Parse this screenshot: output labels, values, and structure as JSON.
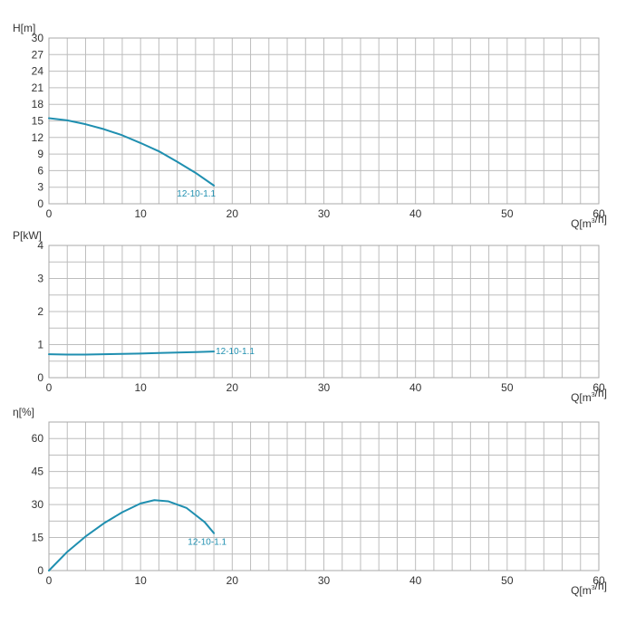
{
  "colors": {
    "curve": "#1f8fb0",
    "grid": "#bdbdbd",
    "axis_text": "#333333"
  },
  "chart_data": [
    {
      "type": "line",
      "ylabel": "H[m]",
      "xlabel": "Q[m³/h]",
      "xlim": [
        0,
        60
      ],
      "ylim": [
        0,
        30
      ],
      "xticks": [
        0,
        10,
        20,
        30,
        40,
        50,
        60
      ],
      "yticks": [
        0,
        3,
        6,
        9,
        12,
        15,
        18,
        21,
        24,
        27,
        30
      ],
      "x_minor_step": 2,
      "y_minor_step": 3,
      "grid": true,
      "series": [
        {
          "name": "12-10-1.1",
          "x": [
            0,
            2,
            4,
            6,
            8,
            10,
            12,
            14,
            16,
            18
          ],
          "y": [
            15.5,
            15.1,
            14.4,
            13.5,
            12.4,
            11.0,
            9.5,
            7.6,
            5.6,
            3.3
          ]
        }
      ]
    },
    {
      "type": "line",
      "ylabel": "P[kW]",
      "xlabel": "Q[m³/h]",
      "xlim": [
        0,
        60
      ],
      "ylim": [
        0,
        4
      ],
      "xticks": [
        0,
        10,
        20,
        30,
        40,
        50,
        60
      ],
      "yticks": [
        0,
        1,
        2,
        3,
        4
      ],
      "x_minor_step": 2,
      "y_minor_step": 0.5,
      "grid": true,
      "series": [
        {
          "name": "12-10-1.1",
          "x": [
            0,
            2,
            4,
            6,
            8,
            10,
            12,
            14,
            16,
            18
          ],
          "y": [
            0.71,
            0.7,
            0.7,
            0.71,
            0.72,
            0.73,
            0.745,
            0.76,
            0.775,
            0.79
          ]
        }
      ]
    },
    {
      "type": "line",
      "ylabel": "η[%]",
      "xlabel": "Q[m³/h]",
      "xlim": [
        0,
        60
      ],
      "ylim": [
        0,
        67.5
      ],
      "xticks": [
        0,
        10,
        20,
        30,
        40,
        50,
        60
      ],
      "yticks": [
        0,
        15,
        30,
        45,
        60
      ],
      "x_minor_step": 2,
      "y_minor_step": 7.5,
      "grid": true,
      "series": [
        {
          "name": "12-10-1.1",
          "x": [
            0,
            2,
            4,
            6,
            8,
            10,
            11.5,
            13,
            15,
            17,
            18
          ],
          "y": [
            0,
            8.5,
            15.5,
            21.5,
            26.5,
            30.5,
            32.0,
            31.5,
            28.5,
            22,
            17
          ]
        }
      ]
    }
  ]
}
